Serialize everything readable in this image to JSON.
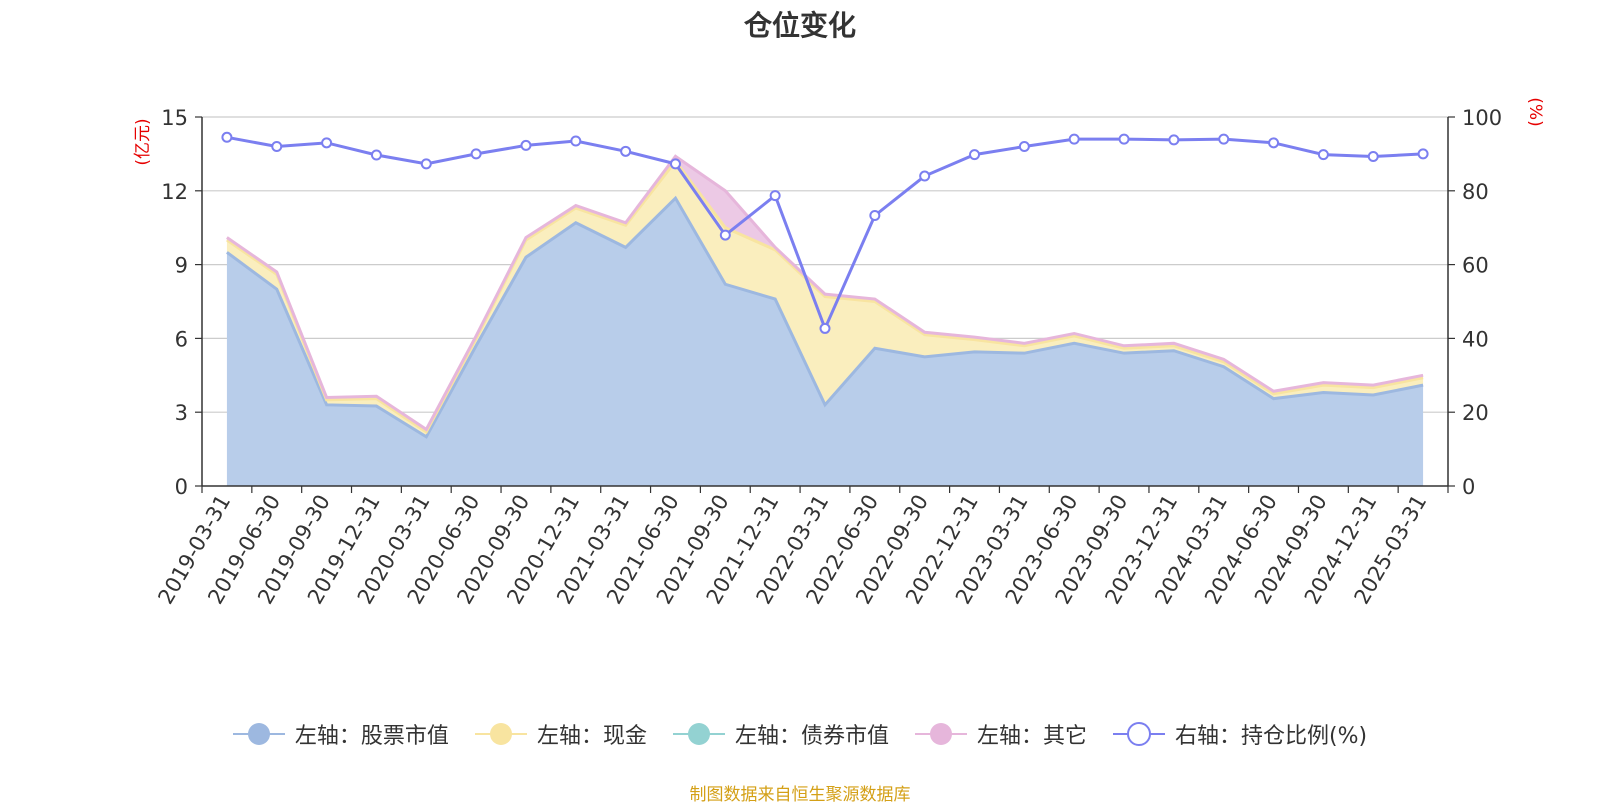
{
  "title": "仓位变化",
  "source_note": "制图数据来自恒生聚源数据库",
  "chart_data": {
    "type": "area",
    "title": "仓位变化",
    "categories": [
      "2019-03-31",
      "2019-06-30",
      "2019-09-30",
      "2019-12-31",
      "2020-03-31",
      "2020-06-30",
      "2020-09-30",
      "2020-12-31",
      "2021-03-31",
      "2021-06-30",
      "2021-09-30",
      "2021-12-31",
      "2022-03-31",
      "2022-06-30",
      "2022-09-30",
      "2022-12-31",
      "2023-03-31",
      "2023-06-30",
      "2023-09-30",
      "2023-12-31",
      "2024-03-31",
      "2024-06-30",
      "2024-09-30",
      "2024-12-31",
      "2025-03-31"
    ],
    "left_axis": {
      "label": "(亿元)",
      "ylim": [
        0,
        15
      ],
      "ticks": [
        0,
        3,
        6,
        9,
        12,
        15
      ]
    },
    "right_axis": {
      "label": "(%)",
      "ylim": [
        0,
        100
      ],
      "ticks": [
        0,
        20,
        40,
        60,
        80,
        100
      ]
    },
    "stacked": true,
    "grid": true,
    "legend_position": "bottom",
    "series": [
      {
        "name": "左轴：股票市值",
        "axis": "left",
        "kind": "area",
        "color": "#9db8e0",
        "fill": "#b8cdea",
        "values": [
          9.5,
          8.0,
          3.3,
          3.25,
          2.0,
          5.7,
          9.3,
          10.7,
          9.7,
          11.7,
          8.2,
          7.6,
          3.3,
          5.6,
          5.25,
          5.45,
          5.4,
          5.8,
          5.4,
          5.5,
          4.85,
          3.55,
          3.8,
          3.7,
          4.1
        ]
      },
      {
        "name": "左轴：现金",
        "axis": "left",
        "kind": "area",
        "color": "#f8e4a0",
        "fill": "#faeebe",
        "values": [
          0.5,
          0.6,
          0.2,
          0.3,
          0.2,
          0.3,
          0.7,
          0.6,
          0.9,
          1.5,
          2.3,
          2.0,
          4.4,
          1.9,
          0.9,
          0.5,
          0.3,
          0.3,
          0.2,
          0.2,
          0.2,
          0.2,
          0.3,
          0.3,
          0.3
        ]
      },
      {
        "name": "左轴：债券市值",
        "axis": "left",
        "kind": "area",
        "color": "#93d2d2",
        "fill": "#a8dcdc",
        "values": [
          0,
          0,
          0,
          0,
          0,
          0,
          0,
          0,
          0,
          0,
          0,
          0,
          0,
          0,
          0,
          0,
          0,
          0,
          0,
          0,
          0,
          0,
          0,
          0,
          0
        ]
      },
      {
        "name": "左轴：其它",
        "axis": "left",
        "kind": "area",
        "color": "#e6b6db",
        "fill": "#ecc9e5",
        "values": [
          0.1,
          0.1,
          0.1,
          0.1,
          0.1,
          0.1,
          0.1,
          0.1,
          0.1,
          0.2,
          1.5,
          0.1,
          0.1,
          0.1,
          0.1,
          0.1,
          0.1,
          0.1,
          0.1,
          0.1,
          0.1,
          0.1,
          0.1,
          0.1,
          0.1
        ]
      },
      {
        "name": "右轴：持仓比例(%)",
        "axis": "right",
        "kind": "line",
        "color": "#7b7ff0",
        "values": [
          94.5,
          92,
          93,
          89.7,
          87.3,
          90,
          92.3,
          93.5,
          90.7,
          87.3,
          68,
          78.7,
          42.7,
          73.3,
          84,
          89.8,
          92,
          94,
          94,
          93.8,
          94,
          93,
          89.8,
          89.3,
          90
        ]
      }
    ]
  }
}
